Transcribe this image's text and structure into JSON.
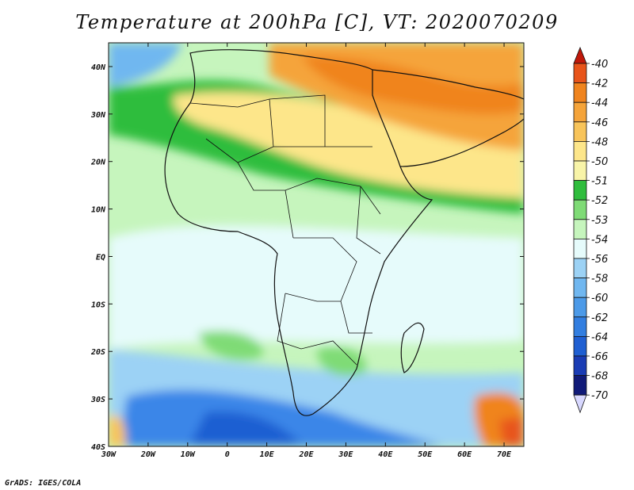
{
  "title": "Temperature at 200hPa [C], VT: 2020070209",
  "credit": "GrADS: IGES/COLA",
  "map": {
    "lon_range": [
      -30,
      75
    ],
    "lat_range": [
      -40,
      45
    ],
    "lon_ticks": [
      "30W",
      "20W",
      "10W",
      "0",
      "10E",
      "20E",
      "30E",
      "40E",
      "50E",
      "60E",
      "70E"
    ],
    "lat_ticks": [
      "40N",
      "30N",
      "20N",
      "10N",
      "EQ",
      "10S",
      "20S",
      "30S",
      "40S"
    ],
    "background_colors": {
      "ocean_sw": "#3a86e8",
      "south_band": "#9cd2f5",
      "tropics": "#e6fbfb",
      "green_band": "#59cf62",
      "sahara": "#fde68a",
      "mideast": "#f5a040"
    }
  },
  "legend": {
    "labels": [
      "-40",
      "-42",
      "-44",
      "-46",
      "-48",
      "-50",
      "-51",
      "-52",
      "-53",
      "-54",
      "-56",
      "-58",
      "-60",
      "-62",
      "-64",
      "-66",
      "-68",
      "-70"
    ],
    "colors": [
      "#c0180a",
      "#e8541a",
      "#f0841e",
      "#f5a43a",
      "#f8c45a",
      "#fde68a",
      "#f8f4a8",
      "#2fbd3d",
      "#7fdb76",
      "#c6f5bd",
      "#e6fbfb",
      "#9cd2f5",
      "#70b7f0",
      "#4c9ae8",
      "#327ee0",
      "#1f5fd2",
      "#1a3cb4",
      "#101a78"
    ]
  }
}
